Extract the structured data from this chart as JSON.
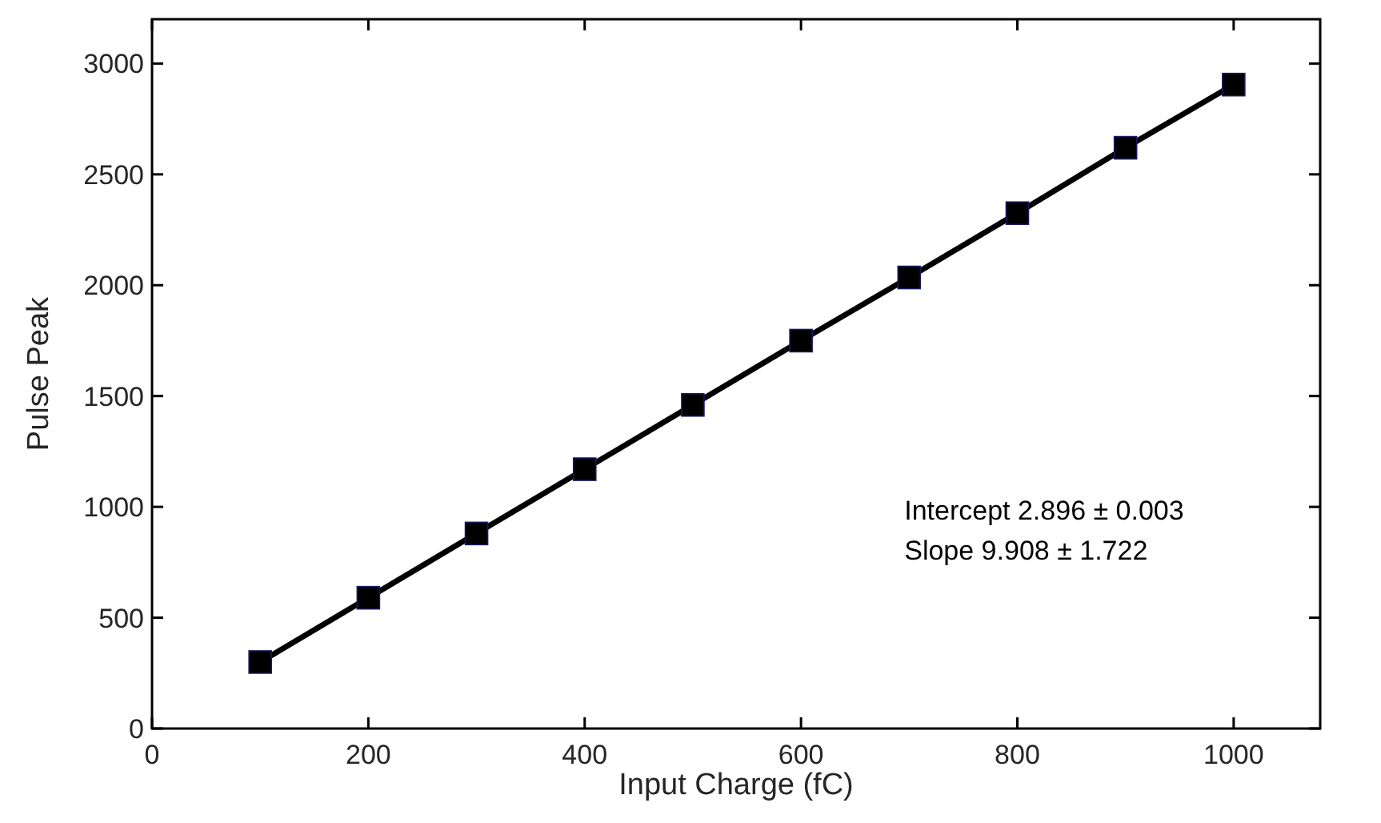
{
  "chart_data": {
    "type": "line",
    "xlabel": "Input Charge (fC)",
    "ylabel": "Pulse Peak",
    "x": [
      100,
      200,
      300,
      400,
      500,
      600,
      700,
      800,
      900,
      1000
    ],
    "series": [
      {
        "color": "#000000",
        "values": [
          300,
          590,
          880,
          1170,
          1460,
          1750,
          2035,
          2325,
          2620,
          2905
        ]
      }
    ],
    "xlim": [
      0,
      1080
    ],
    "xticks": [
      0,
      200,
      400,
      600,
      800,
      1000
    ],
    "ylim": [
      0,
      3200
    ],
    "yticks": [
      0,
      500,
      1000,
      1500,
      2000,
      2500,
      3000
    ],
    "marker": "square",
    "line_style": "solid",
    "annotations": [
      "Intercept  2.896 ± 0.003",
      "Slope  9.908 ± 1.722"
    ]
  }
}
